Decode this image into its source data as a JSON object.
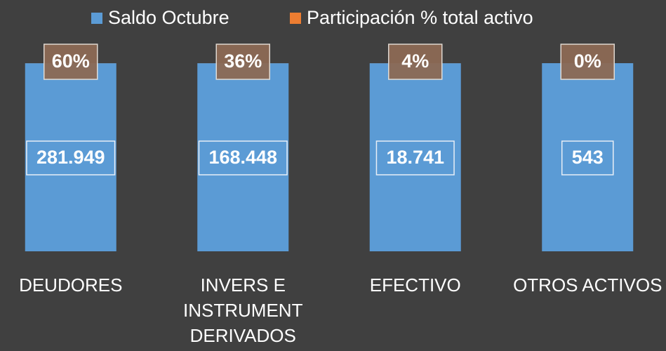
{
  "chart_data": {
    "type": "bar",
    "stacked": "percent",
    "categories": [
      "DEUDORES",
      "INVERS E INSTRUMENT DERIVADOS",
      "EFECTIVO",
      "OTROS ACTIVOS"
    ],
    "series": [
      {
        "name": "Saldo Octubre",
        "color": "#5b9bd5",
        "values": [
          281949,
          168448,
          18741,
          543
        ],
        "value_labels": [
          "281.949",
          "168.448",
          "18.741",
          "543"
        ]
      },
      {
        "name": "Participación % total activo",
        "color": "#ed7d31",
        "values": [
          60,
          36,
          4,
          0
        ],
        "value_labels": [
          "60%",
          "36%",
          "4%",
          "0%"
        ]
      }
    ],
    "legend": "top"
  }
}
